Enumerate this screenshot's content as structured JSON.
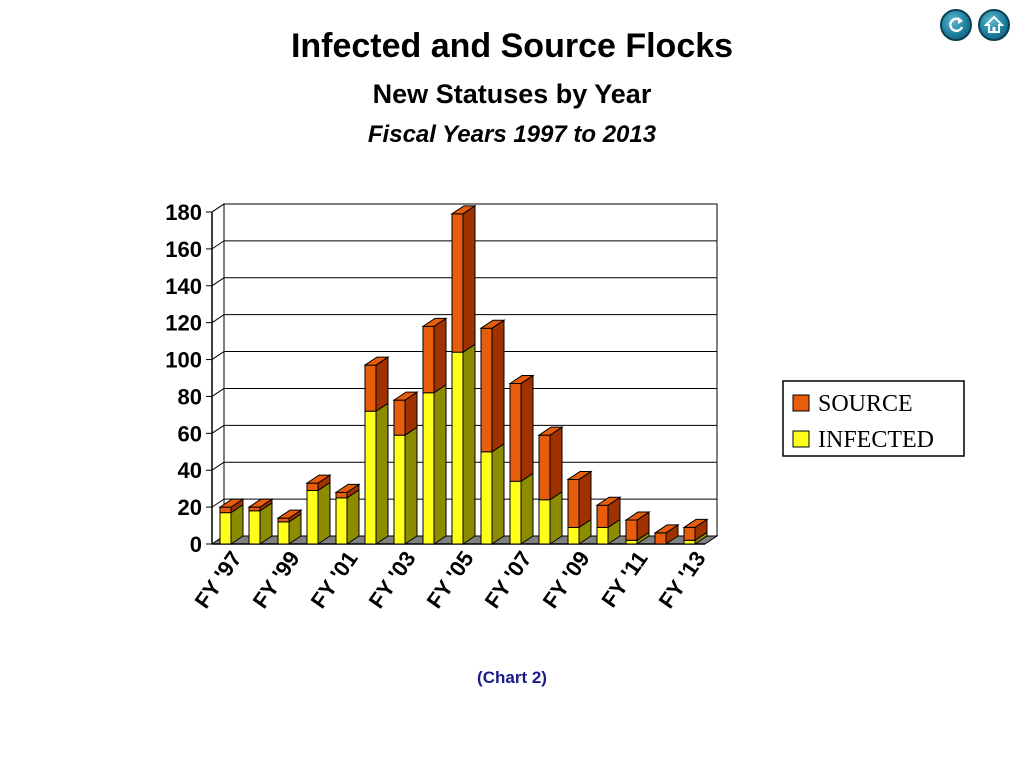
{
  "title": "Infected and Source Flocks",
  "subtitle": "New Statuses by Year",
  "subtitle2": "Fiscal Years 1997 to 2013",
  "caption": "(Chart 2)",
  "nav": {
    "refresh_icon": "refresh-icon",
    "home_icon": "home-icon"
  },
  "colors": {
    "source": "#e85d0c",
    "infected": "#ffff1a",
    "infected_side": "#8c8c00",
    "source_side": "#a03200",
    "floor": "#808080"
  },
  "chart_data": {
    "type": "bar",
    "stacked": true,
    "categories": [
      "FY '97",
      "FY '98",
      "FY '99",
      "FY '00",
      "FY '01",
      "FY '02",
      "FY '03",
      "FY '04",
      "FY '05",
      "FY '06",
      "FY '07",
      "FY '08",
      "FY '09",
      "FY '10",
      "FY '11",
      "FY '12",
      "FY '13"
    ],
    "tick_labels": [
      "FY '97",
      "FY '99",
      "FY '01",
      "FY '03",
      "FY '05",
      "FY '07",
      "FY '09",
      "FY '11",
      "FY '13"
    ],
    "series": [
      {
        "name": "INFECTED",
        "values": [
          17,
          18,
          12,
          29,
          25,
          72,
          59,
          82,
          104,
          50,
          34,
          24,
          9,
          9,
          2,
          0,
          2
        ]
      },
      {
        "name": "SOURCE",
        "values": [
          3,
          2,
          2,
          4,
          3,
          25,
          19,
          36,
          75,
          67,
          53,
          35,
          26,
          12,
          11,
          6,
          7
        ]
      }
    ],
    "y_ticks": [
      0,
      20,
      40,
      60,
      80,
      100,
      120,
      140,
      160,
      180
    ],
    "ylim": [
      0,
      180
    ],
    "grid": true,
    "legend": {
      "placement": "right",
      "entries": [
        "SOURCE",
        "INFECTED"
      ]
    }
  }
}
